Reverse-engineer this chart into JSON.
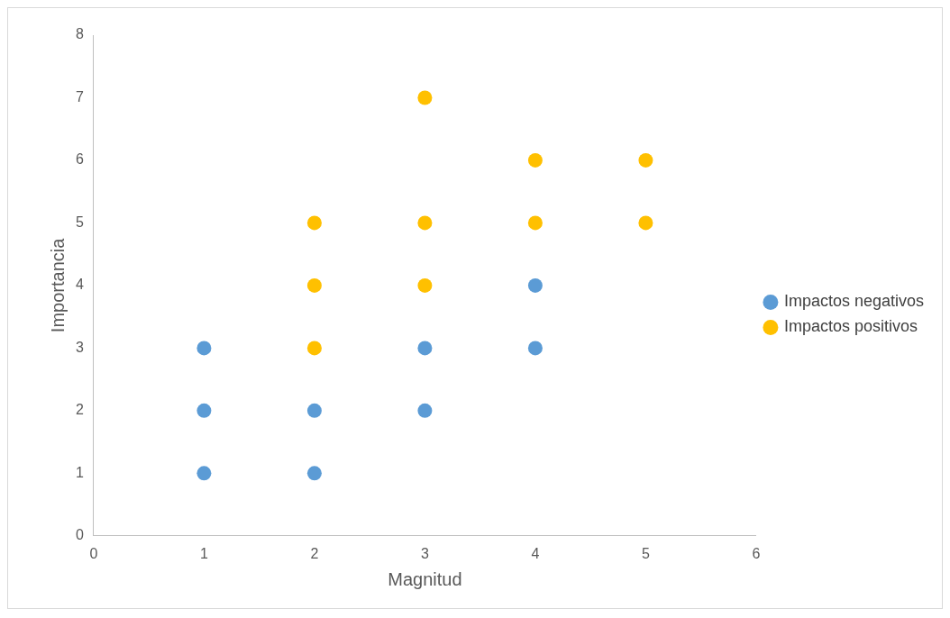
{
  "chart_data": {
    "type": "scatter",
    "xlabel": "Magnitud",
    "ylabel": "Importancia",
    "xlim": [
      0,
      6
    ],
    "xticks": [
      0,
      1,
      2,
      3,
      4,
      5,
      6
    ],
    "ylim": [
      0,
      8
    ],
    "yticks": [
      0,
      1,
      2,
      3,
      4,
      5,
      6,
      7,
      8
    ],
    "grid": false,
    "legend": "right",
    "marker": "circle",
    "series": [
      {
        "name": "Impactos negativos",
        "color": "#5b9bd5",
        "x": [
          1,
          1,
          1,
          2,
          2,
          3,
          3,
          4,
          4
        ],
        "values": [
          3,
          2,
          1,
          2,
          1,
          3,
          2,
          4,
          3
        ]
      },
      {
        "name": "Impactos positivos",
        "color": "#ffc000",
        "x": [
          2,
          2,
          2,
          3,
          3,
          3,
          4,
          4,
          5,
          5
        ],
        "values": [
          5,
          4,
          3,
          7,
          5,
          4,
          6,
          5,
          6,
          5
        ]
      }
    ]
  }
}
